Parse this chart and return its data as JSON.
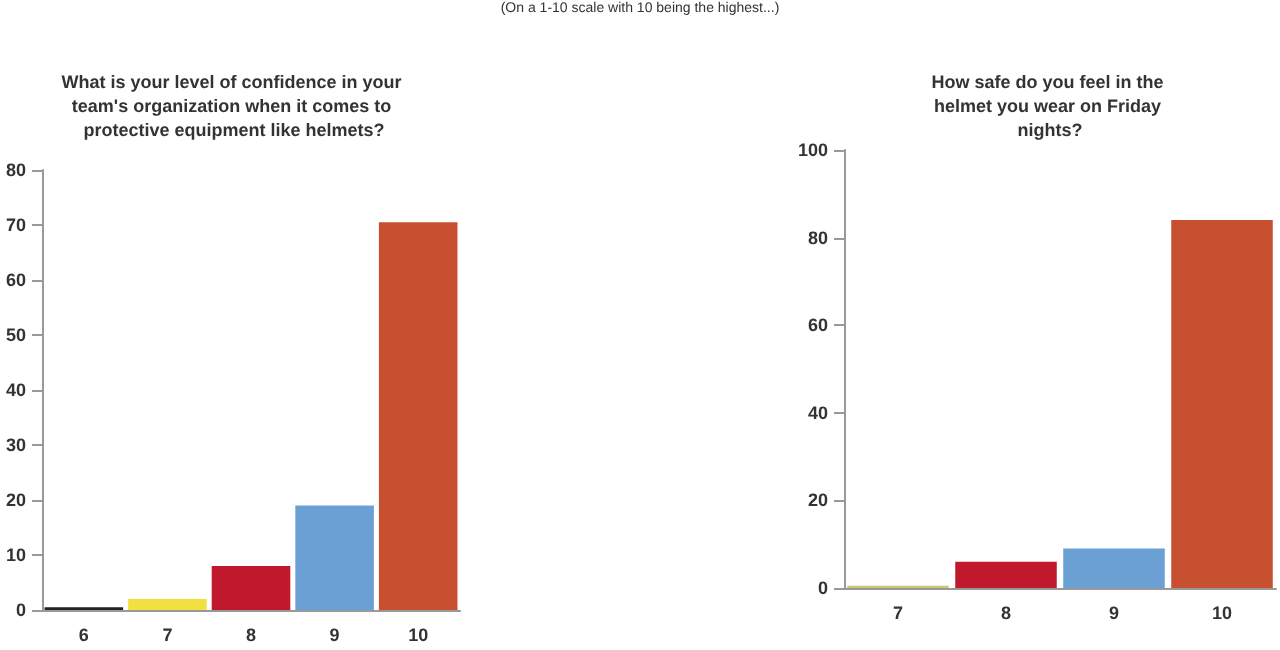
{
  "chart_data": [
    {
      "type": "bar",
      "title": "What is your level of confidence in your team's organization when it comes to protective equipment like helmets?",
      "annotations": [
        "(On a 1-10 scale with 10 being the highest...)"
      ],
      "categories": [
        "6",
        "7",
        "8",
        "9",
        "10"
      ],
      "values": [
        0.5,
        2,
        8,
        19,
        70.5
      ],
      "colors": [
        "#222222",
        "#f0e040",
        "#c0182c",
        "#6aa0d4",
        "#c85030"
      ],
      "ylim": [
        0,
        80
      ],
      "yticks": [
        0,
        10,
        20,
        30,
        40,
        50,
        60,
        70,
        80
      ],
      "grid": false
    },
    {
      "type": "bar",
      "title": "How safe do you feel in the helmet you wear on Friday nights?",
      "categories": [
        "7",
        "8",
        "9",
        "10"
      ],
      "values": [
        0.5,
        6,
        9,
        84
      ],
      "colors": [
        "#c8c870",
        "#c0182c",
        "#6aa0d4",
        "#c85030"
      ],
      "ylim": [
        0,
        100
      ],
      "yticks": [
        0,
        20,
        40,
        60,
        80,
        100
      ],
      "grid": false
    }
  ]
}
